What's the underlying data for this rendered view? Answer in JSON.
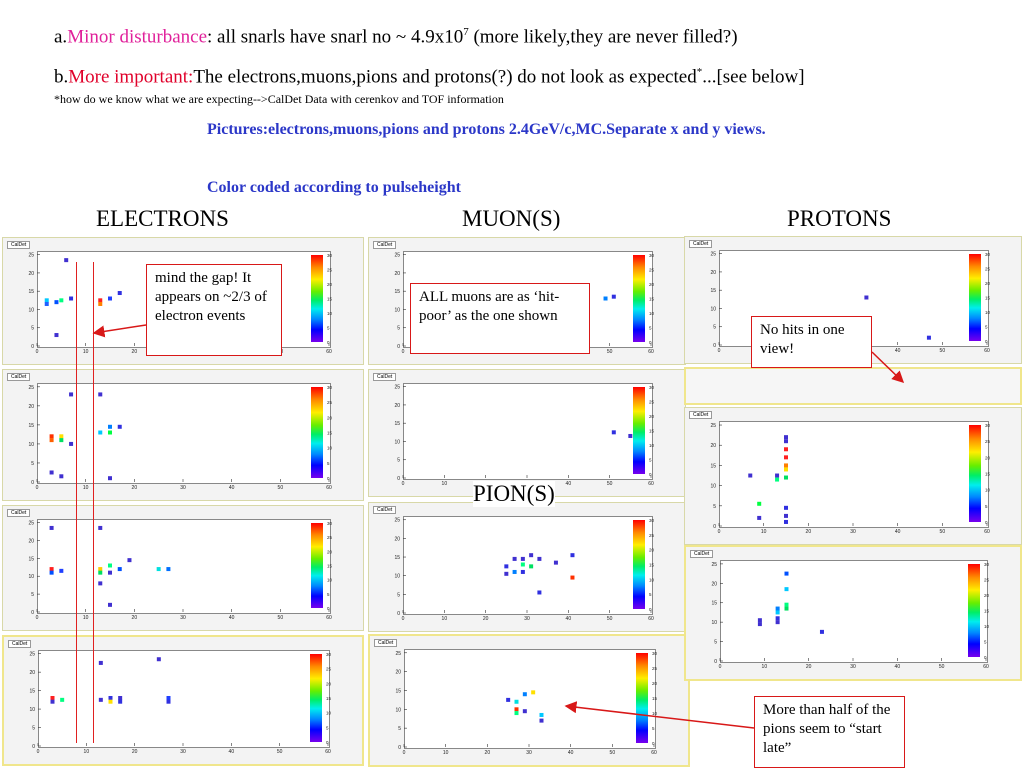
{
  "header": {
    "a_prefix": "a.",
    "a_red": "Minor disturbance",
    "a_text": ": all snarls have snarl no ~ 4.9x10",
    "a_sup": "7",
    "a_tail": " (more likely,they are never filled?)",
    "b_prefix": "b.",
    "b_red": "More important:",
    "b_text": "The electrons,muons,pions and protons(?) do not look as expected",
    "b_sup": "*",
    "b_tail": "...[see below]",
    "footnote": "*how do we know what we are expecting-->CalDet Data with cerenkov and TOF information"
  },
  "notes": {
    "pictures": "Pictures:electrons,muons,pions and protons 2.4GeV/c,MC.Separate x and y views.",
    "color": "Color coded according to pulseheight"
  },
  "sections": {
    "electrons": "ELECTRONS",
    "muons": "MUON(S)",
    "protons": "PROTONS",
    "pions": "PION(S)"
  },
  "callouts": {
    "gap": "mind the gap! It appears on  ~2/3 of electron events",
    "muons": "ALL muons are as ‘hit-poor’ as the one shown",
    "protons": "No hits in one view!",
    "pions": "More than half of the pions seem to “start late”"
  },
  "panel_tag": "CalDet",
  "colors": {
    "accent_red": "#e0002a",
    "accent_magenta": "#e0209a",
    "note_blue": "#2b37c8",
    "arrow_red": "#d81818"
  },
  "plot": {
    "x_ticks": [
      "0",
      "10",
      "20",
      "30",
      "40",
      "50",
      "60"
    ],
    "y_ticks": [
      "0",
      "5",
      "10",
      "15",
      "20",
      "25"
    ],
    "z_ticks": [
      "0",
      "5",
      "10",
      "15",
      "20",
      "25",
      "30"
    ]
  },
  "event_hits": {
    "electrons": [
      [
        [
          6,
          23.5,
          "#4030d0"
        ],
        [
          2,
          12.5,
          "#00c8ff"
        ],
        [
          2,
          11.5,
          "#2060ff"
        ],
        [
          4,
          12,
          "#0050ff"
        ],
        [
          5,
          12.5,
          "#00ff80"
        ],
        [
          7,
          13,
          "#3030e0"
        ],
        [
          13,
          12.5,
          "#ff2020"
        ],
        [
          13,
          11.5,
          "#ff8000"
        ],
        [
          15,
          13,
          "#2040ff"
        ],
        [
          17,
          14.5,
          "#3030e0"
        ],
        [
          4,
          3,
          "#4030d0"
        ]
      ],
      [
        [
          7,
          23,
          "#4030d0"
        ],
        [
          13,
          23,
          "#4030d0"
        ],
        [
          3,
          12,
          "#ff3000"
        ],
        [
          3,
          11,
          "#ff6000"
        ],
        [
          5,
          12,
          "#ffe000"
        ],
        [
          5,
          11,
          "#00e060"
        ],
        [
          7,
          10,
          "#4030d0"
        ],
        [
          13,
          13,
          "#00c8ff"
        ],
        [
          15,
          14.5,
          "#0080ff"
        ],
        [
          15,
          13,
          "#00ff40"
        ],
        [
          17,
          14.5,
          "#3030e0"
        ],
        [
          3,
          2.5,
          "#4030d0"
        ],
        [
          5,
          1.5,
          "#4030d0"
        ],
        [
          15,
          1,
          "#4030d0"
        ]
      ],
      [
        [
          3,
          23.5,
          "#4030d0"
        ],
        [
          13,
          23.5,
          "#4030d0"
        ],
        [
          3,
          12,
          "#ff2020"
        ],
        [
          3,
          11,
          "#0050ff"
        ],
        [
          5,
          11.5,
          "#2040ff"
        ],
        [
          13,
          12,
          "#ffcc00"
        ],
        [
          13,
          11,
          "#00e060"
        ],
        [
          15,
          13,
          "#00ff80"
        ],
        [
          15,
          11,
          "#4030d0"
        ],
        [
          17,
          12,
          "#0050ff"
        ],
        [
          19,
          14.5,
          "#4030d0"
        ],
        [
          25,
          12,
          "#00e0e0"
        ],
        [
          27,
          12,
          "#0070ff"
        ],
        [
          13,
          8,
          "#4030d0"
        ],
        [
          15,
          2,
          "#4030d0"
        ]
      ],
      [
        [
          13,
          22.5,
          "#4030d0"
        ],
        [
          25,
          23.5,
          "#4030d0"
        ],
        [
          3,
          13,
          "#ff2020"
        ],
        [
          3,
          12,
          "#4030d0"
        ],
        [
          5,
          12.5,
          "#00ff80"
        ],
        [
          13,
          12.5,
          "#4030d0"
        ],
        [
          15,
          13,
          "#3030e0"
        ],
        [
          15,
          12,
          "#ffe000"
        ],
        [
          17,
          13,
          "#4030d0"
        ],
        [
          17,
          12,
          "#3030e0"
        ],
        [
          27,
          13,
          "#2040ff"
        ],
        [
          27,
          12,
          "#3030e0"
        ]
      ]
    ],
    "muons": [
      [
        [
          49,
          13,
          "#0080ff"
        ],
        [
          51,
          13.5,
          "#3030e0"
        ]
      ],
      [
        [
          51,
          12.5,
          "#3030e0"
        ],
        [
          55,
          11.5,
          "#4030d0"
        ]
      ]
    ],
    "pions": [
      [
        [
          27,
          14.5,
          "#4030d0"
        ],
        [
          29,
          14.5,
          "#4030d0"
        ],
        [
          31,
          15.5,
          "#4030d0"
        ],
        [
          33,
          14.5,
          "#4030d0"
        ],
        [
          25,
          12.5,
          "#3030e0"
        ],
        [
          29,
          13,
          "#00ff80"
        ],
        [
          31,
          12.5,
          "#00e060"
        ],
        [
          27,
          11,
          "#0080ff"
        ],
        [
          25,
          10.5,
          "#4030d0"
        ],
        [
          29,
          11,
          "#3030e0"
        ],
        [
          37,
          13.5,
          "#4030d0"
        ],
        [
          41,
          15.5,
          "#3030e0"
        ],
        [
          41,
          9.5,
          "#ff3000"
        ],
        [
          33,
          5.5,
          "#3030e0"
        ]
      ],
      [
        [
          31,
          14.5,
          "#ffe000"
        ],
        [
          29,
          14,
          "#0080ff"
        ],
        [
          25,
          12.5,
          "#3030e0"
        ],
        [
          27,
          12,
          "#00e0e0"
        ],
        [
          27,
          10,
          "#ff3000"
        ],
        [
          27,
          9,
          "#00ff80"
        ],
        [
          29,
          9.5,
          "#4030d0"
        ],
        [
          33,
          8.5,
          "#00c8ff"
        ],
        [
          33,
          7,
          "#4030d0"
        ]
      ]
    ],
    "protons": [
      [
        [
          33,
          13,
          "#4030d0"
        ],
        [
          47,
          2,
          "#3030e0"
        ]
      ],
      [
        [
          15,
          22,
          "#4030d0"
        ],
        [
          15,
          21,
          "#4030d0"
        ],
        [
          15,
          19,
          "#ff2020"
        ],
        [
          15,
          17,
          "#ff2020"
        ],
        [
          15,
          15,
          "#ff8000"
        ],
        [
          15,
          14,
          "#ffe000"
        ],
        [
          7,
          12.5,
          "#4030d0"
        ],
        [
          13,
          12.5,
          "#4030d0"
        ],
        [
          13,
          11.5,
          "#00ff80"
        ],
        [
          15,
          12,
          "#00e060"
        ],
        [
          9,
          5.5,
          "#00ff40"
        ],
        [
          9,
          2,
          "#4030d0"
        ],
        [
          15,
          4.5,
          "#3030e0"
        ],
        [
          15,
          2.5,
          "#4030d0"
        ],
        [
          15,
          1,
          "#3030e0"
        ]
      ],
      [
        [
          15,
          22.5,
          "#0050ff"
        ],
        [
          15,
          18.5,
          "#00c8ff"
        ],
        [
          13,
          13.5,
          "#0080ff"
        ],
        [
          15,
          14.5,
          "#00ff80"
        ],
        [
          15,
          13.5,
          "#00e060"
        ],
        [
          13,
          12.5,
          "#00c8ff"
        ],
        [
          13,
          11,
          "#3030e0"
        ],
        [
          13,
          10,
          "#4030d0"
        ],
        [
          9,
          10.5,
          "#4030d0"
        ],
        [
          9,
          9.5,
          "#4030d0"
        ],
        [
          23,
          7.5,
          "#3030e0"
        ]
      ]
    ]
  }
}
